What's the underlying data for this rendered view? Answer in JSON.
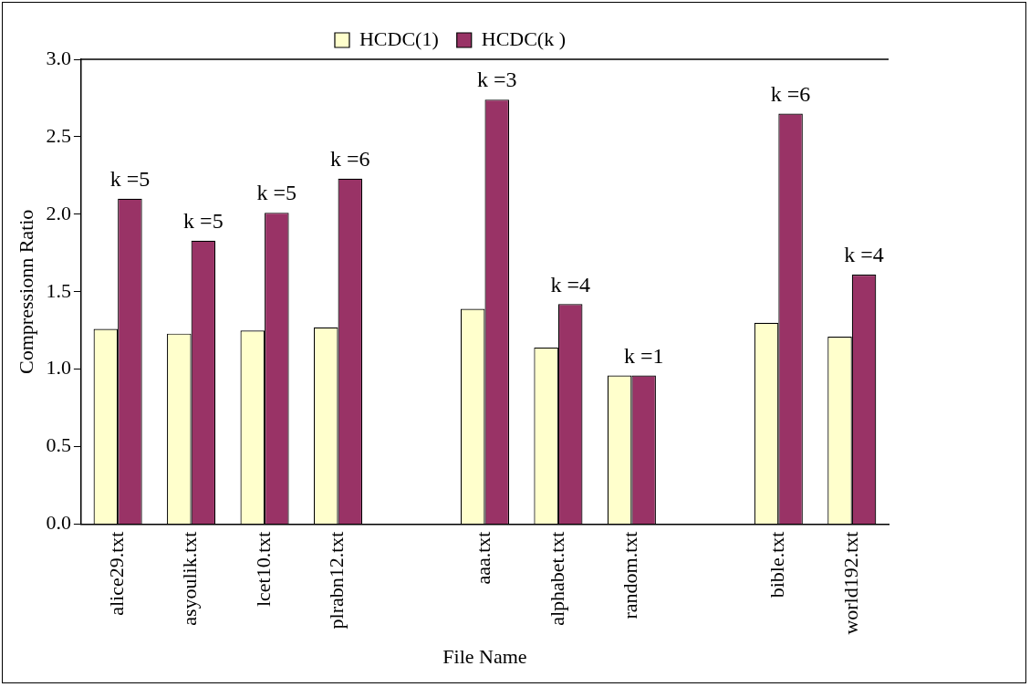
{
  "chart_data": {
    "type": "bar",
    "xlabel": "File Name",
    "ylabel": "Compressionn Ratio",
    "categories": [
      "alice29.txt",
      "asyoulik.txt",
      "lcet10.txt",
      "plrabn12.txt",
      null,
      "aaa.txt",
      "alphabet.txt",
      "random.txt",
      null,
      "bible.txt",
      "world192.txt"
    ],
    "series": [
      {
        "name": "HCDC(1)",
        "color": "#ffffcc",
        "values": [
          1.26,
          1.23,
          1.25,
          1.27,
          null,
          1.39,
          1.14,
          0.96,
          null,
          1.3,
          1.21
        ]
      },
      {
        "name": "HCDC(k )",
        "color": "#993366",
        "values": [
          2.1,
          1.83,
          2.01,
          2.23,
          null,
          2.74,
          1.42,
          0.96,
          null,
          2.65,
          1.61
        ]
      }
    ],
    "ylim": [
      0,
      3
    ],
    "yticks": [
      {
        "value": 0,
        "label": "0.0"
      },
      {
        "value": 0.5,
        "label": "0.5"
      },
      {
        "value": 1,
        "label": "1.0"
      },
      {
        "value": 1.5,
        "label": "1.5"
      },
      {
        "value": 2,
        "label": "2.0"
      },
      {
        "value": 2.5,
        "label": "2.5"
      },
      {
        "value": 3,
        "label": "3.0"
      }
    ],
    "grid": false,
    "legend": "top",
    "annotations": [
      {
        "text": "k =5",
        "x": "alice29.txt",
        "y": 2.1
      },
      {
        "text": "k =5",
        "x": "asyoulik.txt",
        "y": 1.83
      },
      {
        "text": "k =5",
        "x": "lcet10.txt",
        "y": 2.01
      },
      {
        "text": "k =6",
        "x": "plrabn12.txt",
        "y": 2.23
      },
      {
        "text": "k =3",
        "x": "aaa.txt",
        "y": 2.74
      },
      {
        "text": "k =4",
        "x": "alphabet.txt",
        "y": 1.42
      },
      {
        "text": "k =1",
        "x": "random.txt",
        "y": 0.96
      },
      {
        "text": "k =6",
        "x": "bible.txt",
        "y": 2.65
      },
      {
        "text": "k =4",
        "x": "world192.txt",
        "y": 1.61
      }
    ]
  }
}
